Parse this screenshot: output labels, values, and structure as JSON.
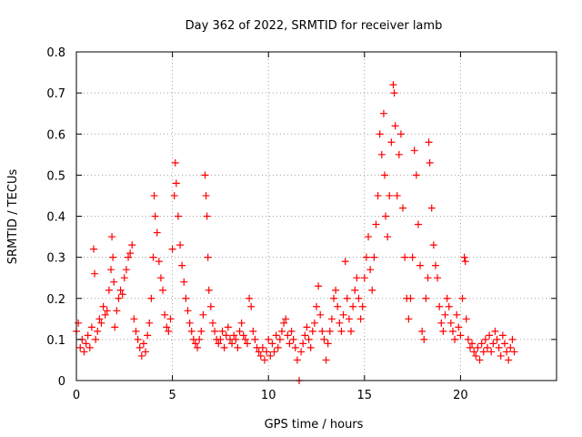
{
  "chart_data": {
    "type": "scatter",
    "title": "Day 362 of 2022, SRMTID for receiver lamb",
    "xlabel": "GPS time / hours",
    "ylabel": "SRMTID / TECUs",
    "xlim": [
      0,
      25
    ],
    "ylim": [
      0,
      0.8
    ],
    "xticks": [
      0,
      5,
      10,
      15,
      20
    ],
    "xtick_labels": [
      "0",
      "5",
      "10",
      "15",
      "20"
    ],
    "yticks": [
      0,
      0.1,
      0.2,
      0.3,
      0.4,
      0.5,
      0.6,
      0.7,
      0.8
    ],
    "ytick_labels": [
      "0",
      "0.1",
      "0.2",
      "0.3",
      "0.4",
      "0.5",
      "0.6",
      "0.7",
      "0.8"
    ],
    "grid": true,
    "marker": "plus",
    "series": [
      {
        "name": "SRMTID",
        "color": "#ff0000",
        "points": [
          [
            0.0,
            0.12
          ],
          [
            0.1,
            0.14
          ],
          [
            0.2,
            0.08
          ],
          [
            0.3,
            0.1
          ],
          [
            0.4,
            0.07
          ],
          [
            0.5,
            0.09
          ],
          [
            0.6,
            0.11
          ],
          [
            0.7,
            0.08
          ],
          [
            0.8,
            0.13
          ],
          [
            0.9,
            0.32
          ],
          [
            0.95,
            0.26
          ],
          [
            1.0,
            0.1
          ],
          [
            1.1,
            0.12
          ],
          [
            1.2,
            0.15
          ],
          [
            1.3,
            0.14
          ],
          [
            1.4,
            0.18
          ],
          [
            1.5,
            0.16
          ],
          [
            1.6,
            0.17
          ],
          [
            1.7,
            0.22
          ],
          [
            1.8,
            0.27
          ],
          [
            1.85,
            0.35
          ],
          [
            1.9,
            0.3
          ],
          [
            1.95,
            0.24
          ],
          [
            2.0,
            0.13
          ],
          [
            2.1,
            0.17
          ],
          [
            2.2,
            0.2
          ],
          [
            2.3,
            0.22
          ],
          [
            2.4,
            0.21
          ],
          [
            2.5,
            0.25
          ],
          [
            2.6,
            0.27
          ],
          [
            2.7,
            0.3
          ],
          [
            2.8,
            0.31
          ],
          [
            2.9,
            0.33
          ],
          [
            3.0,
            0.15
          ],
          [
            3.1,
            0.12
          ],
          [
            3.2,
            0.1
          ],
          [
            3.3,
            0.08
          ],
          [
            3.4,
            0.06
          ],
          [
            3.5,
            0.09
          ],
          [
            3.6,
            0.07
          ],
          [
            3.7,
            0.11
          ],
          [
            3.8,
            0.14
          ],
          [
            3.9,
            0.2
          ],
          [
            4.0,
            0.3
          ],
          [
            4.05,
            0.45
          ],
          [
            4.1,
            0.4
          ],
          [
            4.2,
            0.36
          ],
          [
            4.3,
            0.29
          ],
          [
            4.4,
            0.25
          ],
          [
            4.5,
            0.22
          ],
          [
            4.6,
            0.16
          ],
          [
            4.7,
            0.13
          ],
          [
            4.8,
            0.12
          ],
          [
            4.9,
            0.15
          ],
          [
            5.0,
            0.32
          ],
          [
            5.1,
            0.45
          ],
          [
            5.15,
            0.53
          ],
          [
            5.2,
            0.48
          ],
          [
            5.3,
            0.4
          ],
          [
            5.4,
            0.33
          ],
          [
            5.5,
            0.28
          ],
          [
            5.6,
            0.24
          ],
          [
            5.7,
            0.2
          ],
          [
            5.8,
            0.17
          ],
          [
            5.9,
            0.14
          ],
          [
            6.0,
            0.12
          ],
          [
            6.1,
            0.1
          ],
          [
            6.2,
            0.09
          ],
          [
            6.3,
            0.08
          ],
          [
            6.4,
            0.1
          ],
          [
            6.5,
            0.12
          ],
          [
            6.6,
            0.16
          ],
          [
            6.7,
            0.5
          ],
          [
            6.75,
            0.45
          ],
          [
            6.8,
            0.4
          ],
          [
            6.85,
            0.3
          ],
          [
            6.9,
            0.22
          ],
          [
            7.0,
            0.18
          ],
          [
            7.1,
            0.14
          ],
          [
            7.2,
            0.12
          ],
          [
            7.3,
            0.1
          ],
          [
            7.4,
            0.09
          ],
          [
            7.5,
            0.1
          ],
          [
            7.6,
            0.12
          ],
          [
            7.7,
            0.08
          ],
          [
            7.8,
            0.11
          ],
          [
            7.9,
            0.13
          ],
          [
            8.0,
            0.1
          ],
          [
            8.1,
            0.09
          ],
          [
            8.2,
            0.11
          ],
          [
            8.3,
            0.1
          ],
          [
            8.4,
            0.08
          ],
          [
            8.5,
            0.12
          ],
          [
            8.6,
            0.14
          ],
          [
            8.7,
            0.11
          ],
          [
            8.8,
            0.1
          ],
          [
            8.9,
            0.09
          ],
          [
            9.0,
            0.2
          ],
          [
            9.1,
            0.18
          ],
          [
            9.2,
            0.12
          ],
          [
            9.3,
            0.1
          ],
          [
            9.4,
            0.08
          ],
          [
            9.5,
            0.07
          ],
          [
            9.6,
            0.06
          ],
          [
            9.7,
            0.08
          ],
          [
            9.8,
            0.05
          ],
          [
            9.9,
            0.07
          ],
          [
            10.0,
            0.1
          ],
          [
            10.1,
            0.06
          ],
          [
            10.2,
            0.09
          ],
          [
            10.3,
            0.07
          ],
          [
            10.4,
            0.11
          ],
          [
            10.5,
            0.08
          ],
          [
            10.6,
            0.1
          ],
          [
            10.7,
            0.12
          ],
          [
            10.8,
            0.14
          ],
          [
            10.9,
            0.15
          ],
          [
            11.0,
            0.11
          ],
          [
            11.1,
            0.09
          ],
          [
            11.2,
            0.12
          ],
          [
            11.3,
            0.1
          ],
          [
            11.4,
            0.08
          ],
          [
            11.5,
            0.05
          ],
          [
            11.6,
            0.0
          ],
          [
            11.7,
            0.07
          ],
          [
            11.8,
            0.09
          ],
          [
            11.9,
            0.11
          ],
          [
            12.0,
            0.13
          ],
          [
            12.1,
            0.1
          ],
          [
            12.2,
            0.08
          ],
          [
            12.3,
            0.12
          ],
          [
            12.4,
            0.14
          ],
          [
            12.5,
            0.18
          ],
          [
            12.6,
            0.23
          ],
          [
            12.7,
            0.16
          ],
          [
            12.8,
            0.12
          ],
          [
            12.9,
            0.1
          ],
          [
            13.0,
            0.05
          ],
          [
            13.1,
            0.09
          ],
          [
            13.2,
            0.12
          ],
          [
            13.3,
            0.15
          ],
          [
            13.4,
            0.2
          ],
          [
            13.5,
            0.22
          ],
          [
            13.6,
            0.18
          ],
          [
            13.7,
            0.14
          ],
          [
            13.8,
            0.12
          ],
          [
            13.9,
            0.16
          ],
          [
            14.0,
            0.29
          ],
          [
            14.1,
            0.2
          ],
          [
            14.2,
            0.15
          ],
          [
            14.3,
            0.12
          ],
          [
            14.4,
            0.18
          ],
          [
            14.5,
            0.22
          ],
          [
            14.6,
            0.25
          ],
          [
            14.7,
            0.2
          ],
          [
            14.8,
            0.15
          ],
          [
            14.9,
            0.18
          ],
          [
            15.0,
            0.25
          ],
          [
            15.1,
            0.3
          ],
          [
            15.2,
            0.35
          ],
          [
            15.3,
            0.27
          ],
          [
            15.4,
            0.22
          ],
          [
            15.5,
            0.3
          ],
          [
            15.6,
            0.38
          ],
          [
            15.7,
            0.45
          ],
          [
            15.8,
            0.6
          ],
          [
            15.9,
            0.55
          ],
          [
            16.0,
            0.65
          ],
          [
            16.05,
            0.5
          ],
          [
            16.1,
            0.4
          ],
          [
            16.2,
            0.35
          ],
          [
            16.3,
            0.45
          ],
          [
            16.4,
            0.58
          ],
          [
            16.5,
            0.72
          ],
          [
            16.55,
            0.7
          ],
          [
            16.6,
            0.62
          ],
          [
            16.7,
            0.45
          ],
          [
            16.8,
            0.55
          ],
          [
            16.9,
            0.6
          ],
          [
            17.0,
            0.42
          ],
          [
            17.1,
            0.3
          ],
          [
            17.2,
            0.2
          ],
          [
            17.3,
            0.15
          ],
          [
            17.4,
            0.2
          ],
          [
            17.5,
            0.3
          ],
          [
            17.6,
            0.56
          ],
          [
            17.7,
            0.5
          ],
          [
            17.8,
            0.38
          ],
          [
            17.9,
            0.28
          ],
          [
            18.0,
            0.12
          ],
          [
            18.1,
            0.1
          ],
          [
            18.2,
            0.2
          ],
          [
            18.3,
            0.25
          ],
          [
            18.35,
            0.58
          ],
          [
            18.4,
            0.53
          ],
          [
            18.5,
            0.42
          ],
          [
            18.6,
            0.33
          ],
          [
            18.7,
            0.28
          ],
          [
            18.8,
            0.25
          ],
          [
            18.9,
            0.18
          ],
          [
            19.0,
            0.14
          ],
          [
            19.1,
            0.12
          ],
          [
            19.2,
            0.16
          ],
          [
            19.3,
            0.2
          ],
          [
            19.4,
            0.18
          ],
          [
            19.5,
            0.14
          ],
          [
            19.6,
            0.12
          ],
          [
            19.7,
            0.1
          ],
          [
            19.8,
            0.16
          ],
          [
            19.9,
            0.13
          ],
          [
            20.0,
            0.11
          ],
          [
            20.1,
            0.2
          ],
          [
            20.2,
            0.3
          ],
          [
            20.25,
            0.29
          ],
          [
            20.3,
            0.15
          ],
          [
            20.4,
            0.1
          ],
          [
            20.5,
            0.08
          ],
          [
            20.6,
            0.09
          ],
          [
            20.7,
            0.07
          ],
          [
            20.8,
            0.06
          ],
          [
            20.9,
            0.08
          ],
          [
            21.0,
            0.05
          ],
          [
            21.1,
            0.09
          ],
          [
            21.2,
            0.07
          ],
          [
            21.3,
            0.1
          ],
          [
            21.4,
            0.08
          ],
          [
            21.5,
            0.11
          ],
          [
            21.6,
            0.07
          ],
          [
            21.7,
            0.09
          ],
          [
            21.8,
            0.12
          ],
          [
            21.9,
            0.1
          ],
          [
            22.0,
            0.08
          ],
          [
            22.1,
            0.06
          ],
          [
            22.2,
            0.11
          ],
          [
            22.3,
            0.09
          ],
          [
            22.4,
            0.07
          ],
          [
            22.5,
            0.05
          ],
          [
            22.6,
            0.08
          ],
          [
            22.7,
            0.1
          ],
          [
            22.8,
            0.07
          ]
        ]
      }
    ]
  }
}
